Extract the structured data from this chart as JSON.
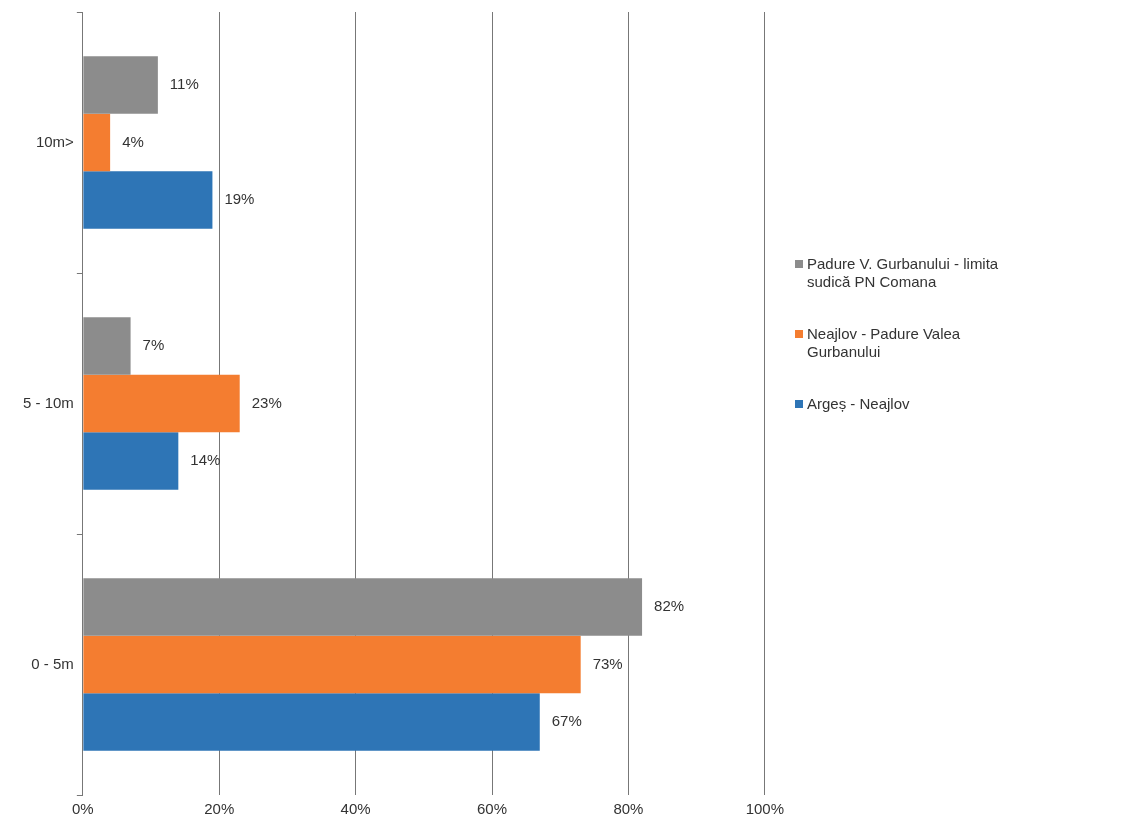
{
  "chart_data": {
    "type": "bar",
    "orientation": "horizontal",
    "categories": [
      "10m>",
      "5 - 10m",
      "0 - 5m"
    ],
    "series": [
      {
        "name": "Padure V. Gurbanului - limita sudică PN Comana",
        "color": "#8c8c8c",
        "values": [
          11,
          7,
          82
        ],
        "value_labels": [
          "11%",
          "7%",
          "82%"
        ]
      },
      {
        "name": "Neajlov - Padure Valea Gurbanului",
        "color": "#f47d30",
        "values": [
          4,
          23,
          73
        ],
        "value_labels": [
          "4%",
          "23%",
          "73%"
        ]
      },
      {
        "name": "Argeș - Neajlov",
        "color": "#2e75b6",
        "values": [
          19,
          14,
          67
        ],
        "value_labels": [
          "19%",
          "14%",
          "67%"
        ]
      }
    ],
    "xlim": [
      0,
      100
    ],
    "xticks": [
      {
        "value": 0,
        "label": "0%"
      },
      {
        "value": 20,
        "label": "20%"
      },
      {
        "value": 40,
        "label": "40%"
      },
      {
        "value": 60,
        "label": "60%"
      },
      {
        "value": 80,
        "label": "80%"
      },
      {
        "value": 100,
        "label": "100%"
      }
    ],
    "grid": "x",
    "legend": "right"
  }
}
